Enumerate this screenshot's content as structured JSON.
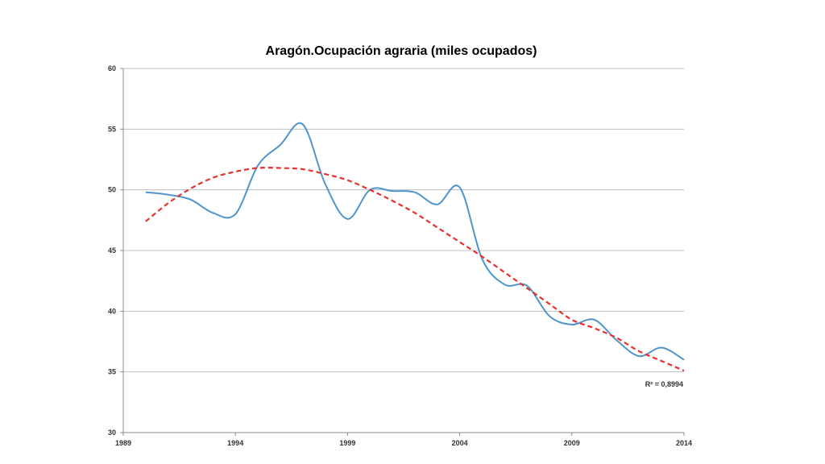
{
  "chart_data": {
    "type": "line",
    "title": "Aragón.Ocupación agraria (miles ocupados)",
    "xlabel": "",
    "ylabel": "",
    "xlim": [
      1989,
      2014
    ],
    "ylim": [
      30,
      60
    ],
    "x_ticks": [
      1989,
      1994,
      1999,
      2004,
      2009,
      2014
    ],
    "y_ticks": [
      30,
      35,
      40,
      45,
      50,
      55,
      60
    ],
    "x_tick_labels": [
      "1989",
      "1994",
      "1999",
      "2004",
      "2009",
      "2014"
    ],
    "y_tick_labels": [
      "30",
      "35",
      "40",
      "45",
      "50",
      "55",
      "60"
    ],
    "grid": "horizontal",
    "series": [
      {
        "x": [
          1990,
          1991,
          1992,
          1993,
          1994,
          1995,
          1996,
          1997,
          1998,
          1999,
          2000,
          2001,
          2002,
          2003,
          2004,
          2005,
          2006,
          2007,
          2008,
          2009,
          2010,
          2011,
          2012,
          2013,
          2014
        ],
        "values": [
          49.8,
          49.6,
          49.2,
          48.1,
          48.0,
          52.0,
          53.7,
          55.4,
          50.5,
          47.6,
          50.0,
          49.9,
          49.8,
          48.8,
          50.2,
          44.3,
          42.2,
          42.1,
          39.6,
          38.9,
          39.3,
          37.6,
          36.3,
          37.0,
          36.0
        ],
        "color": "#4f95cd",
        "style": "solid"
      }
    ],
    "trendline": {
      "type": "polynomial",
      "r_squared_label": "R² = 0,8994",
      "color": "#e8312c",
      "style": "dashed",
      "x": [
        1990,
        1991,
        1992,
        1993,
        1994,
        1995,
        1996,
        1997,
        1998,
        1999,
        2000,
        2001,
        2002,
        2003,
        2004,
        2005,
        2006,
        2007,
        2008,
        2009,
        2010,
        2011,
        2012,
        2013,
        2014
      ],
      "values": [
        47.4,
        48.9,
        50.1,
        51.0,
        51.5,
        51.8,
        51.8,
        51.7,
        51.3,
        50.8,
        50.0,
        49.1,
        48.1,
        46.9,
        45.7,
        44.5,
        43.2,
        41.9,
        40.6,
        39.3,
        38.6,
        37.8,
        36.7,
        35.9,
        35.1
      ]
    }
  }
}
